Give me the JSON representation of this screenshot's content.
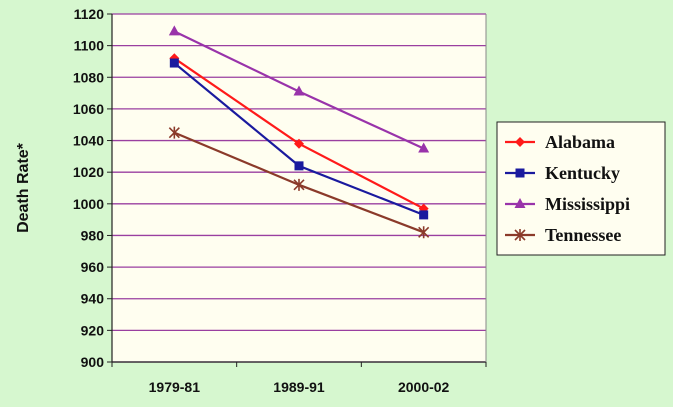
{
  "chart_data": {
    "type": "line",
    "title": "",
    "xlabel": "",
    "ylabel": "Death Rate*",
    "categories": [
      "1979-81",
      "1989-91",
      "2000-02"
    ],
    "ylim": [
      900,
      1120
    ],
    "yticks": [
      900,
      920,
      940,
      960,
      980,
      1000,
      1020,
      1040,
      1060,
      1080,
      1100,
      1120
    ],
    "grid": "horizontal",
    "legend_position": "right",
    "series": [
      {
        "name": "Alabama",
        "values": [
          1092,
          1038,
          997
        ],
        "color": "#ff1a1a",
        "marker": "diamond"
      },
      {
        "name": "Kentucky",
        "values": [
          1089,
          1024,
          993
        ],
        "color": "#1a1a9e",
        "marker": "square"
      },
      {
        "name": "Mississippi",
        "values": [
          1109,
          1071,
          1035
        ],
        "color": "#9933aa",
        "marker": "triangle"
      },
      {
        "name": "Tennessee",
        "values": [
          1045,
          1012,
          982
        ],
        "color": "#8b3a2a",
        "marker": "star"
      }
    ]
  }
}
